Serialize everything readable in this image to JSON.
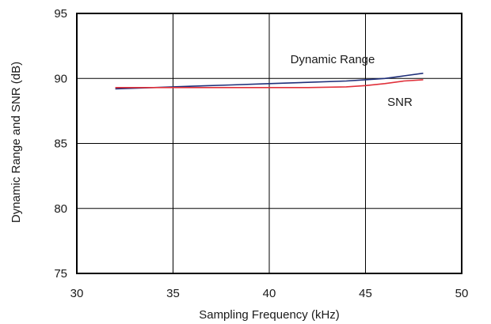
{
  "chart_data": {
    "type": "line",
    "title": "",
    "xlabel": "Sampling Frequency (kHz)",
    "ylabel": "Dynamic Range and SNR (dB)",
    "xlim": [
      30,
      50
    ],
    "ylim": [
      75,
      95
    ],
    "xticks": [
      30,
      35,
      40,
      45,
      50
    ],
    "yticks": [
      75,
      80,
      85,
      90,
      95
    ],
    "grid": true,
    "series": [
      {
        "name": "Dynamic Range",
        "color": "#1f2f7a",
        "x": [
          32,
          34,
          36,
          38,
          40,
          42,
          44,
          45,
          46,
          47,
          48
        ],
        "y": [
          89.2,
          89.3,
          89.4,
          89.5,
          89.6,
          89.7,
          89.8,
          89.9,
          90.0,
          90.2,
          90.4
        ]
      },
      {
        "name": "SNR",
        "color": "#e0303a",
        "x": [
          32,
          34,
          36,
          38,
          40,
          42,
          44,
          45,
          46,
          47,
          48
        ],
        "y": [
          89.3,
          89.3,
          89.3,
          89.3,
          89.3,
          89.3,
          89.35,
          89.45,
          89.6,
          89.8,
          89.9
        ]
      }
    ]
  }
}
